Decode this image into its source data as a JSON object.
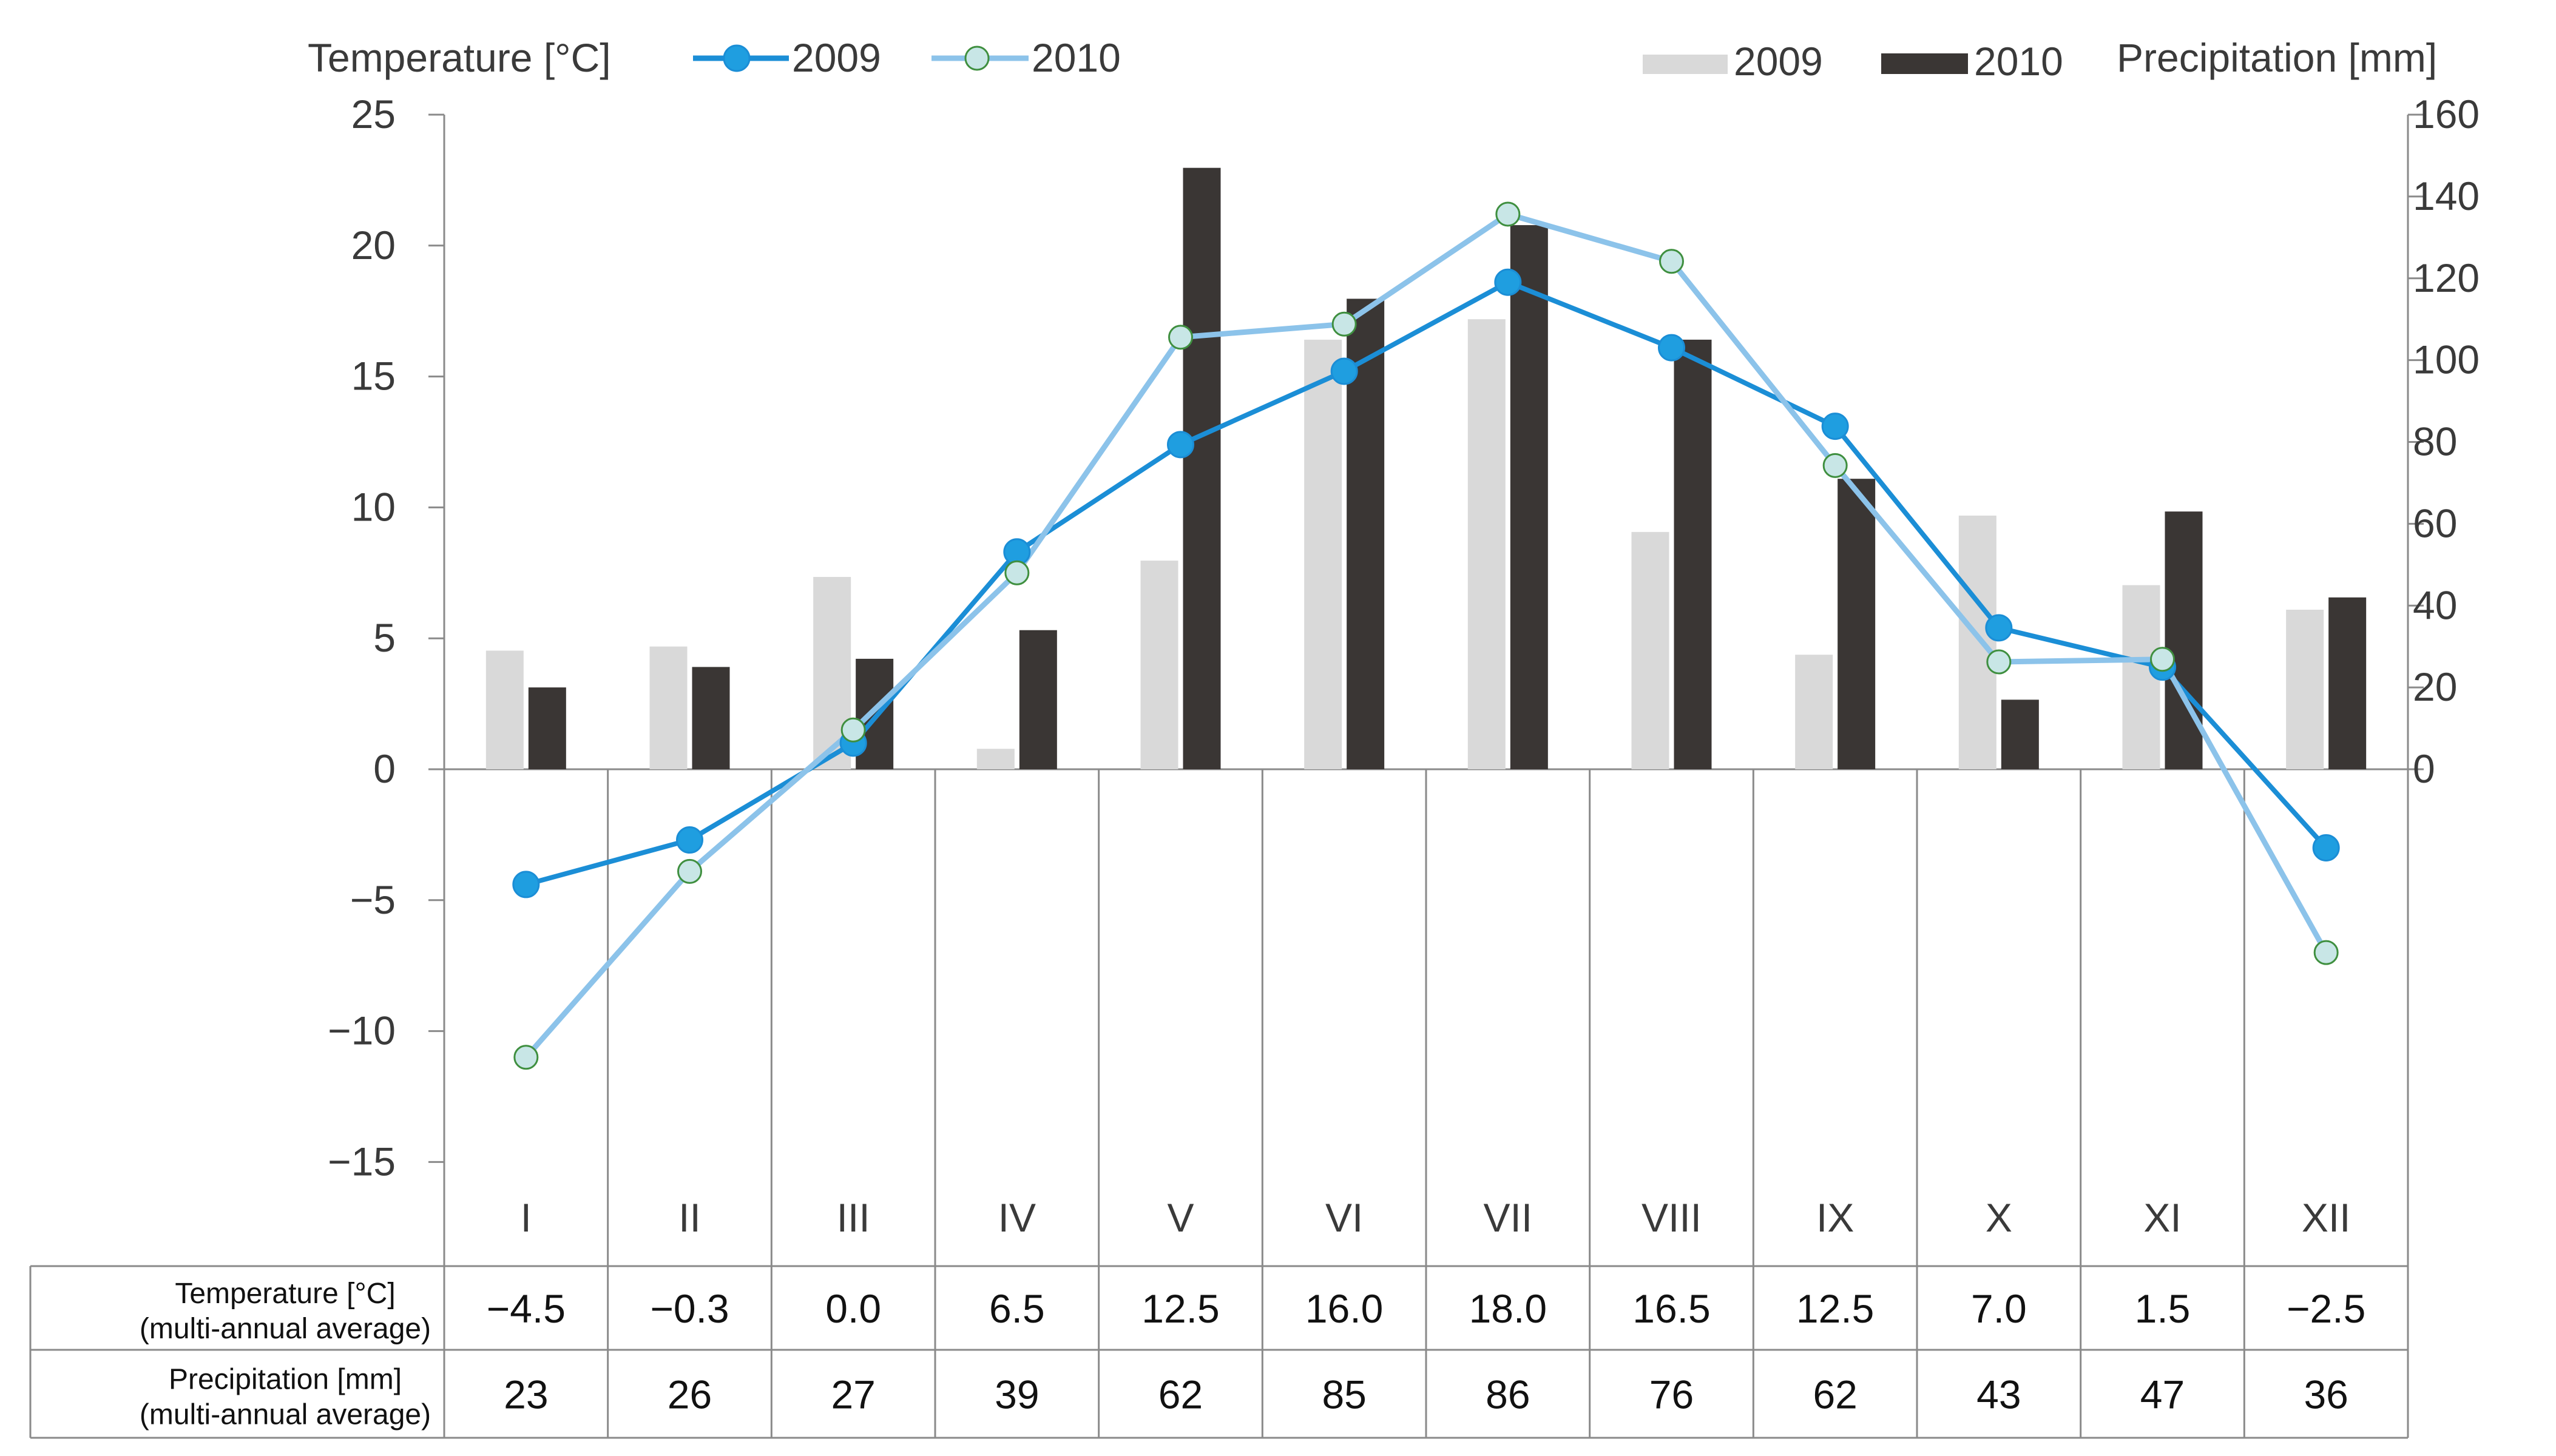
{
  "chart_data": {
    "type": "bar+line",
    "categories": [
      "I",
      "II",
      "III",
      "IV",
      "V",
      "VI",
      "VII",
      "VIII",
      "IX",
      "X",
      "XI",
      "XII"
    ],
    "left_axis": {
      "label": "Temperature [°C]",
      "ylim": [
        -15,
        25
      ],
      "ticks": [
        25,
        20,
        15,
        10,
        5,
        0,
        -5,
        -10,
        -15
      ],
      "tick_labels": [
        "25",
        "20",
        "15",
        "10",
        "5",
        "0",
        "−5",
        "−10",
        "−15"
      ]
    },
    "right_axis": {
      "label": "Precipitation [mm]",
      "ylim": [
        0,
        160
      ],
      "ticks": [
        160,
        140,
        120,
        100,
        80,
        60,
        40,
        20,
        0
      ],
      "tick_labels": [
        "160",
        "140",
        "120",
        "100",
        "80",
        "60",
        "40",
        "20",
        "0"
      ]
    },
    "bar_series": [
      {
        "name": "2009",
        "color": "#d9d9d9",
        "values": [
          29,
          30,
          47,
          5,
          51,
          105,
          110,
          58,
          28,
          62,
          45,
          39
        ]
      },
      {
        "name": "2010",
        "color": "#3a3634",
        "values": [
          20,
          25,
          27,
          34,
          147,
          115,
          133,
          105,
          71,
          17,
          63,
          42
        ]
      }
    ],
    "line_series": [
      {
        "name": "2009",
        "color": "#1b8ed6",
        "marker_fill": "#1f9ee0",
        "values": [
          -4.4,
          -2.7,
          1.0,
          8.3,
          12.4,
          15.2,
          18.6,
          16.1,
          13.1,
          5.4,
          3.9,
          -3.0
        ]
      },
      {
        "name": "2010",
        "color": "#8cc3ea",
        "marker_fill": "#c8e6e6",
        "marker_stroke": "#3f8f3f",
        "values": [
          -11.0,
          -3.9,
          1.5,
          7.5,
          16.5,
          17.0,
          21.2,
          19.4,
          11.6,
          4.1,
          4.2,
          -7.0
        ]
      }
    ],
    "legend": {
      "temperature_label": "Temperature [°C]",
      "precipitation_label": "Precipitation [mm]",
      "line_2009": "2009",
      "line_2010": "2010",
      "bar_2009": "2009",
      "bar_2010": "2010"
    },
    "table": {
      "rows": [
        {
          "header_line1": "Temperature [°C]",
          "header_line2": "(multi-annual average)",
          "values": [
            "−4.5",
            "−0.3",
            "0.0",
            "6.5",
            "12.5",
            "16.0",
            "18.0",
            "16.5",
            "12.5",
            "7.0",
            "1.5",
            "−2.5"
          ]
        },
        {
          "header_line1": "Precipitation [mm]",
          "header_line2": "(multi-annual average)",
          "values": [
            "23",
            "26",
            "27",
            "39",
            "62",
            "85",
            "86",
            "76",
            "62",
            "43",
            "47",
            "36"
          ]
        }
      ]
    }
  }
}
